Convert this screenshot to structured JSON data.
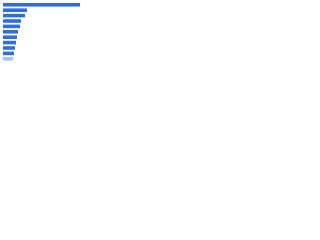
{
  "chart_data": {
    "type": "barh",
    "categories": [
      null,
      null,
      null,
      null,
      null,
      null,
      null,
      null,
      null,
      null,
      null
    ],
    "values": [
      77,
      24,
      22,
      18,
      17,
      15,
      14,
      13,
      12,
      11,
      10
    ],
    "colors": [
      "#2f6fdb",
      "#2f6fdb",
      "#2f6fdb",
      "#2f6fdb",
      "#2f6fdb",
      "#2f6fdb",
      "#2f6fdb",
      "#2f6fdb",
      "#2f6fdb",
      "#2f6fdb",
      "#a9c1e8"
    ],
    "xlim": [
      0,
      80
    ]
  }
}
